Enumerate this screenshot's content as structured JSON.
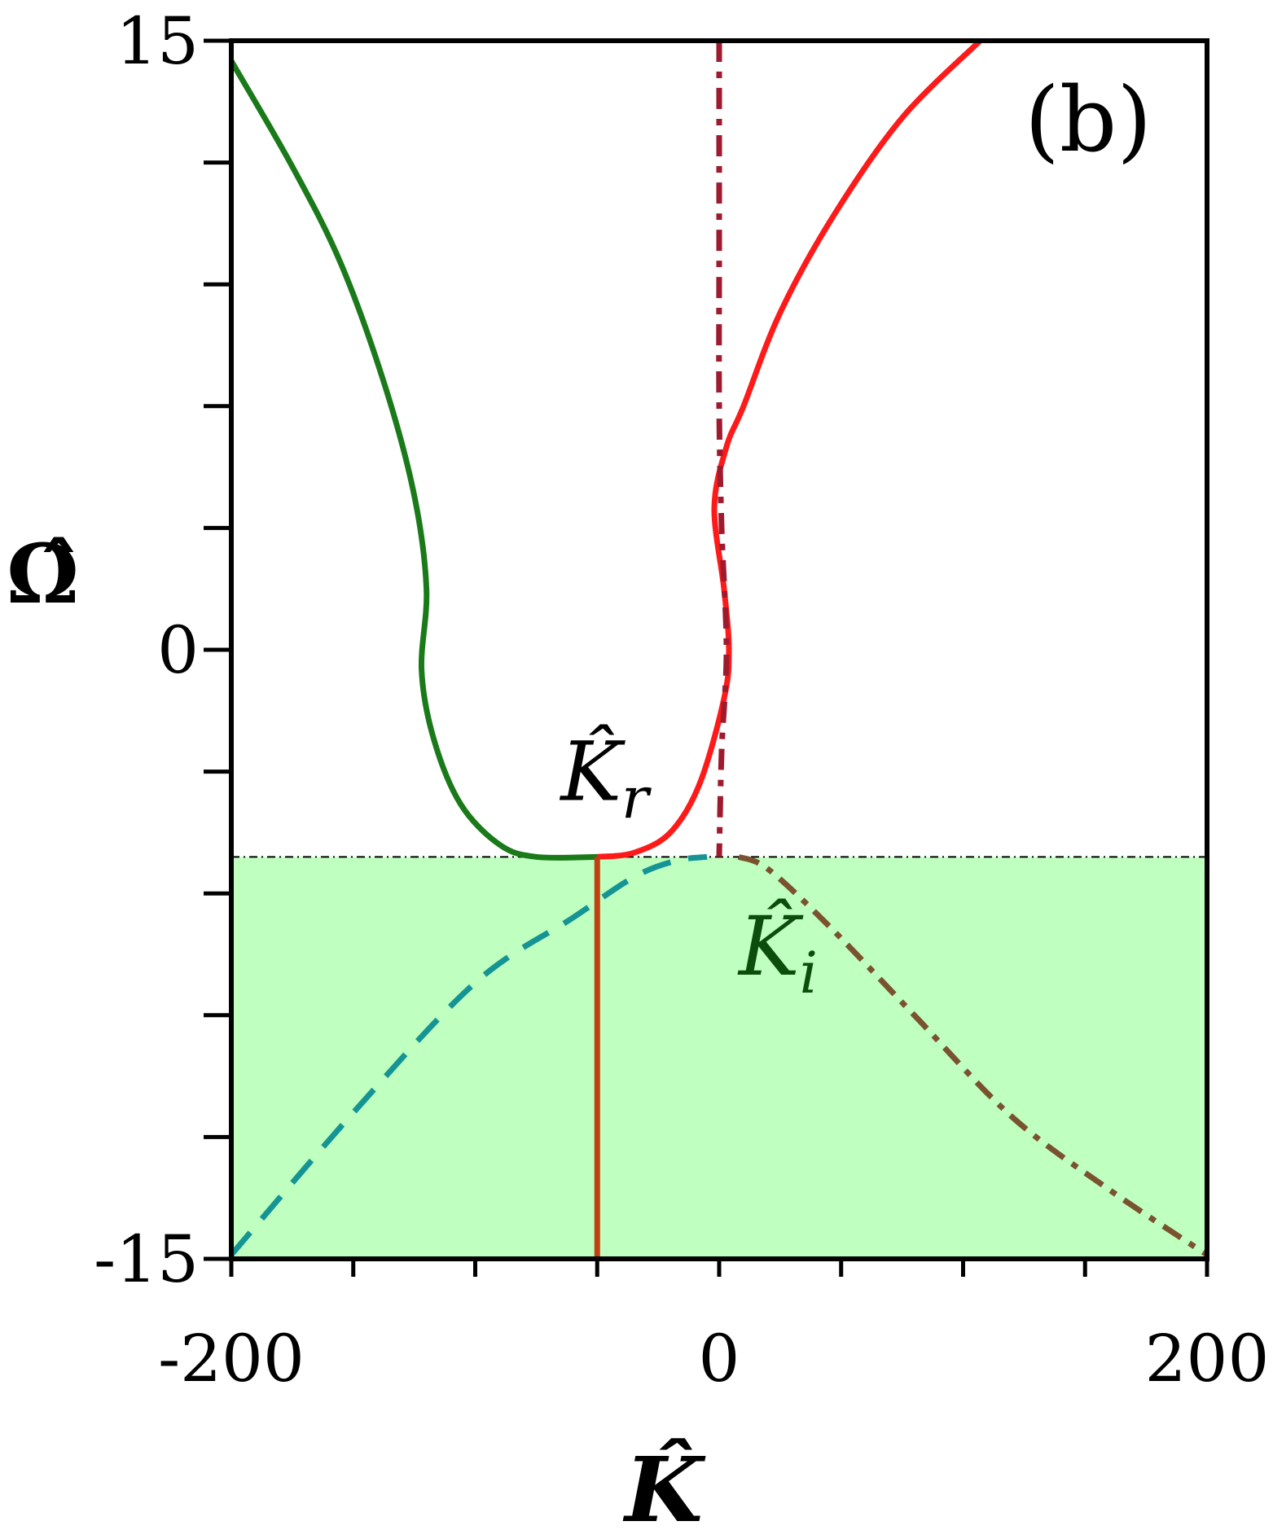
{
  "chart_data": {
    "type": "line",
    "panel_label": "(b)",
    "xlabel": "K̂",
    "ylabel": "Ω̂",
    "xlim": [
      -200,
      200
    ],
    "ylim": [
      -15,
      15
    ],
    "x_ticks": [
      -200,
      -150,
      -100,
      -50,
      0,
      50,
      100,
      150,
      200
    ],
    "y_ticks": [
      -15,
      -12,
      -9,
      -6,
      -3,
      0,
      3,
      6,
      9,
      12,
      15
    ],
    "x_tick_labels": [
      {
        "value": -200,
        "text": "-200"
      },
      {
        "value": 0,
        "text": "0"
      },
      {
        "value": 200,
        "text": "200"
      }
    ],
    "y_tick_labels": [
      {
        "value": 15,
        "text": "15"
      },
      {
        "value": 0,
        "text": "0"
      },
      {
        "value": -15,
        "text": "-15"
      }
    ],
    "shaded_region": {
      "y_from": -15,
      "y_to": -5.1,
      "color": "#bfffbf"
    },
    "threshold_line": {
      "y": -5.1
    },
    "annotations": [
      {
        "text": "K̂",
        "sub": "r",
        "x": -65,
        "y": -3.7,
        "color": "#000000"
      },
      {
        "text": "K̂",
        "sub": "i",
        "x": 8,
        "y": -8.0,
        "color": "#0b4d0b"
      }
    ],
    "series": [
      {
        "color": "#1a7a1a",
        "style": "solid",
        "points": [
          [
            -200,
            14.5
          ],
          [
            -175,
            11.9
          ],
          [
            -155,
            9.5
          ],
          [
            -137,
            6.5
          ],
          [
            -125,
            3.8
          ],
          [
            -120,
            1.5
          ],
          [
            -122,
            -0.5
          ],
          [
            -117,
            -2.2
          ],
          [
            -106,
            -3.8
          ],
          [
            -90,
            -4.8
          ],
          [
            -75,
            -5.1
          ],
          [
            -50,
            -5.1
          ]
        ]
      },
      {
        "color": "#ff1a1a",
        "style": "solid",
        "points": [
          [
            -50,
            -5.1
          ],
          [
            -35,
            -5.0
          ],
          [
            -20,
            -4.5
          ],
          [
            -8,
            -3.3
          ],
          [
            2,
            -1.2
          ],
          [
            4,
            0.0
          ],
          [
            2,
            1.5
          ],
          [
            -2,
            3.5
          ],
          [
            3,
            5.0
          ],
          [
            10,
            6.0
          ],
          [
            25,
            8.3
          ],
          [
            47,
            10.7
          ],
          [
            75,
            13.1
          ],
          [
            107,
            15
          ]
        ]
      },
      {
        "color": "#9e1a2e",
        "style": "dashdot",
        "points": [
          [
            0,
            15
          ],
          [
            0,
            10
          ],
          [
            0,
            6
          ],
          [
            1,
            3
          ],
          [
            3,
            0
          ],
          [
            1,
            -2.5
          ],
          [
            0,
            -5.1
          ]
        ]
      },
      {
        "color": "#7a5230",
        "style": "dashdot",
        "points": [
          [
            8,
            -5.1
          ],
          [
            20,
            -5.4
          ],
          [
            45,
            -6.8
          ],
          [
            80,
            -9.0
          ],
          [
            120,
            -11.5
          ],
          [
            160,
            -13.3
          ],
          [
            200,
            -14.9
          ]
        ]
      },
      {
        "color": "#149494",
        "style": "dashed",
        "points": [
          [
            -200,
            -14.9
          ],
          [
            -150,
            -11.4
          ],
          [
            -100,
            -8.2
          ],
          [
            -60,
            -6.6
          ],
          [
            -35,
            -5.6
          ],
          [
            -18,
            -5.2
          ],
          [
            -5,
            -5.1
          ]
        ]
      },
      {
        "color": "#c04010",
        "style": "solid",
        "points": [
          [
            -50,
            -5.1
          ],
          [
            -50,
            -15
          ]
        ]
      }
    ]
  }
}
